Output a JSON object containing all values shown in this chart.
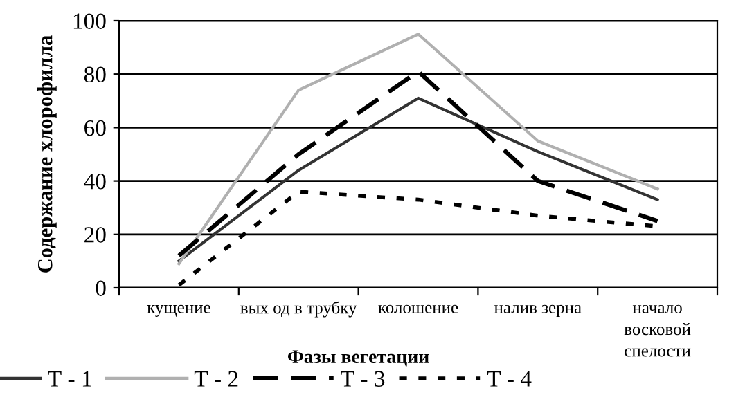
{
  "chart_data": {
    "type": "line",
    "xlabel": "Фазы вегетации",
    "ylabel": "Содержание хлорофилла",
    "categories": [
      "кущение",
      "вых од в трубку",
      "колошение",
      "налив зерна",
      "начало\nвосковой\nспелости"
    ],
    "series": [
      {
        "name": "Т - 1",
        "color": "#333333",
        "values": [
          10,
          44,
          71,
          51,
          33
        ],
        "line_style": "solid"
      },
      {
        "name": "Т - 2",
        "color": "#b0b0b0",
        "values": [
          9,
          74,
          95,
          55,
          37
        ],
        "line_style": "solid"
      },
      {
        "name": "Т - 3",
        "color": "#000000",
        "values": [
          12,
          50,
          81,
          40,
          25
        ],
        "line_style": "dashed"
      },
      {
        "name": "Т - 4",
        "color": "#000000",
        "values": [
          1,
          36,
          33,
          27,
          23
        ],
        "line_style": "dotted"
      }
    ],
    "ylim": [
      0,
      100
    ],
    "yticks": [
      0,
      20,
      40,
      60,
      80,
      100
    ],
    "grid": "y",
    "legend": "bottom",
    "marker": "none"
  }
}
